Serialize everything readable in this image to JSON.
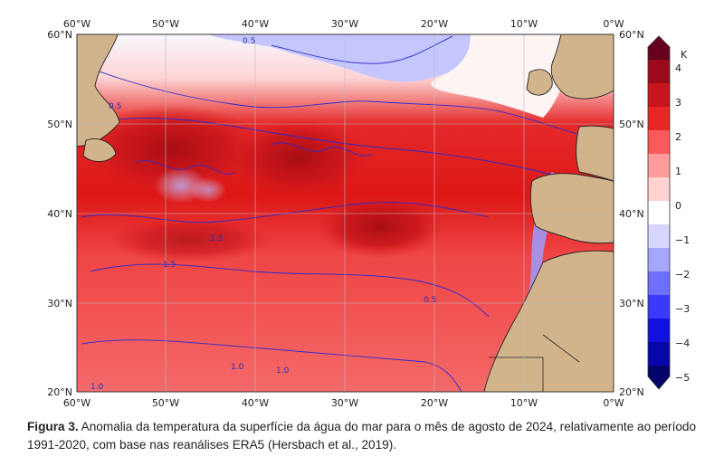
{
  "figure": {
    "x_ticks": [
      "60°W",
      "50°W",
      "40°W",
      "30°W",
      "20°W",
      "10°W",
      "0°W"
    ],
    "y_ticks": [
      "60°N",
      "50°N",
      "40°N",
      "30°N",
      "20°N"
    ],
    "contour_labels": [
      "0.5",
      "1.5",
      "1.0",
      "1.5",
      "0.5",
      "1.0",
      "1.0",
      "0.5"
    ]
  },
  "colorbar": {
    "unit": "K",
    "ticks": [
      "4",
      "3",
      "2",
      "1",
      "0",
      "−1",
      "−2",
      "−3",
      "−4",
      "−5"
    ],
    "colors": [
      "#67001f",
      "#9a0a1a",
      "#c8141c",
      "#e82626",
      "#fb5a5a",
      "#ff9b9b",
      "#ffd1d1",
      "#ffffff",
      "#d6d6ff",
      "#a6a6ff",
      "#6f6fff",
      "#3a3aff",
      "#1010e0",
      "#0606a8",
      "#03036a"
    ]
  },
  "caption": {
    "label": "Figura 3.",
    "text": " Anomalia da temperatura da superfície da água do mar para o mês de agosto de 2024, relativamente ao período 1991-2020, com base nas reanálises ERA5 (Hersbach et al., 2019)."
  }
}
